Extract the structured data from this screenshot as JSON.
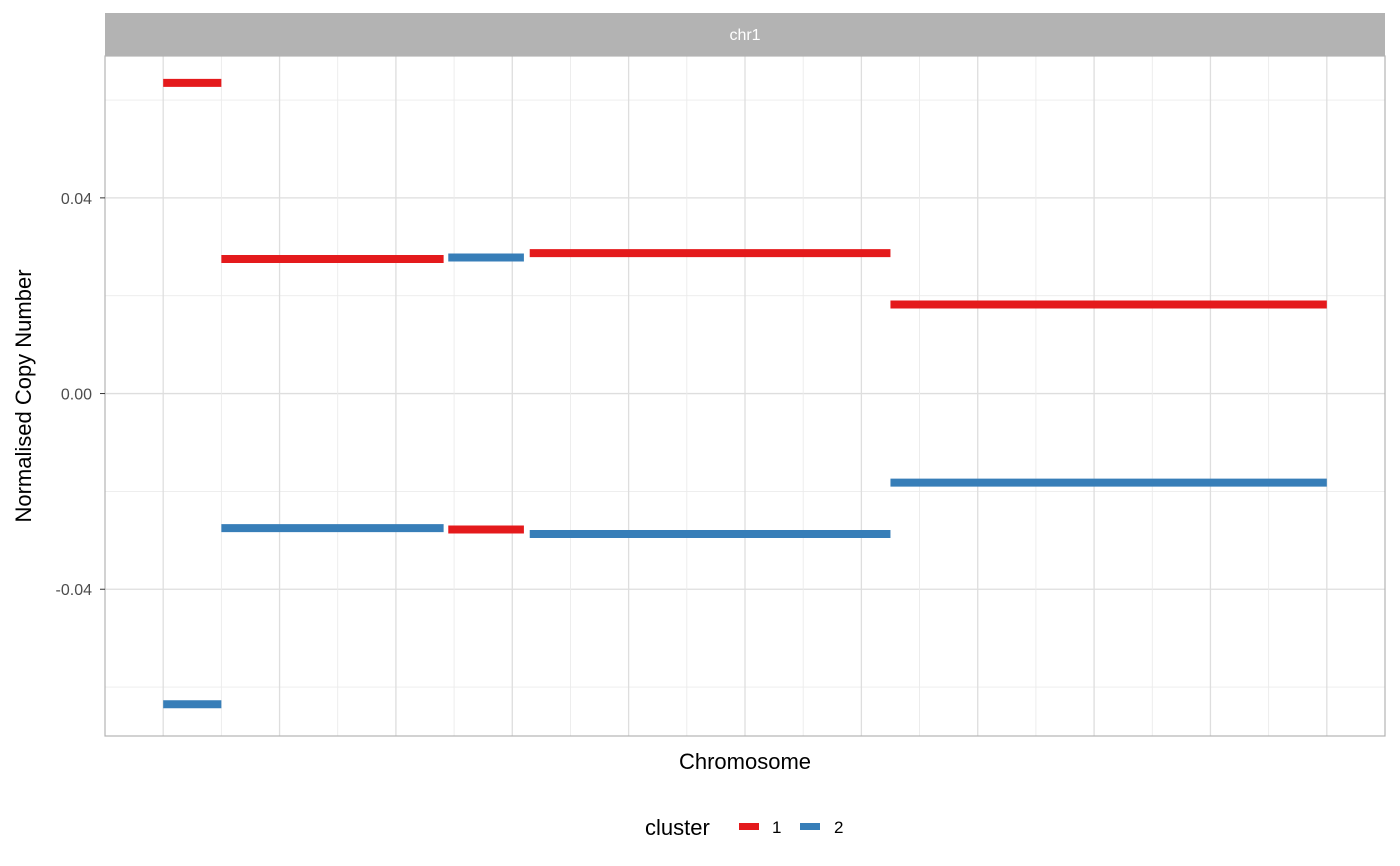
{
  "chart_data": {
    "type": "line",
    "facet_label": "chr1",
    "xlabel": "Chromosome",
    "ylabel": "Normalised Copy Number",
    "ylim": [
      -0.07,
      0.069
    ],
    "xlim": [
      -0.5,
      10.5
    ],
    "y_ticks": [
      -0.04,
      0.0,
      0.04
    ],
    "y_tick_labels": [
      "-0.04",
      "0.00",
      "0.04"
    ],
    "grid": true,
    "legend": {
      "title": "cluster",
      "position": "bottom",
      "entries": [
        {
          "label": "1",
          "color": "#E41A1C"
        },
        {
          "label": "2",
          "color": "#377EB8"
        }
      ]
    },
    "series": [
      {
        "name": "1",
        "color": "#E41A1C",
        "segments": [
          {
            "x_start": 0.0,
            "x_end": 0.5,
            "y": 0.0635
          },
          {
            "x_start": 0.5,
            "x_end": 2.41,
            "y": 0.0275
          },
          {
            "x_start": 2.45,
            "x_end": 3.1,
            "y": -0.0278
          },
          {
            "x_start": 3.15,
            "x_end": 6.25,
            "y": 0.0287
          },
          {
            "x_start": 6.25,
            "x_end": 10.0,
            "y": 0.0182
          }
        ]
      },
      {
        "name": "2",
        "color": "#377EB8",
        "segments": [
          {
            "x_start": 0.0,
            "x_end": 0.5,
            "y": -0.0635
          },
          {
            "x_start": 0.5,
            "x_end": 2.41,
            "y": -0.0275
          },
          {
            "x_start": 2.45,
            "x_end": 3.1,
            "y": 0.0278
          },
          {
            "x_start": 3.15,
            "x_end": 6.25,
            "y": -0.0287
          },
          {
            "x_start": 6.25,
            "x_end": 10.0,
            "y": -0.0182
          }
        ]
      }
    ]
  }
}
